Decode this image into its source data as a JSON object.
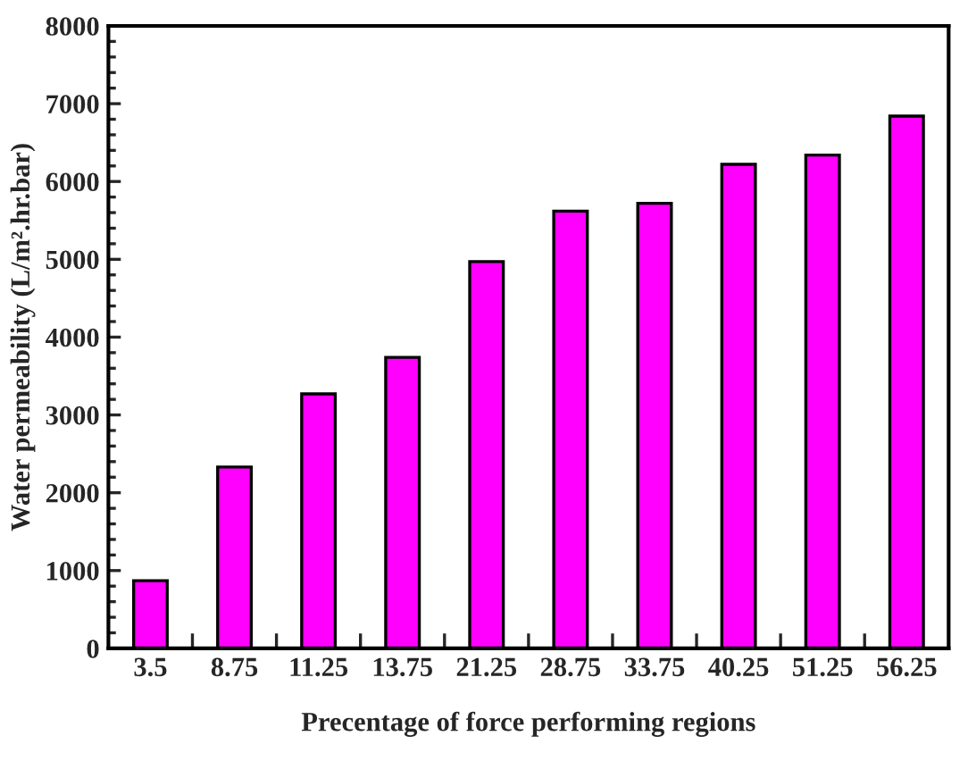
{
  "chart_data": {
    "type": "bar",
    "xlabel": "Precentage of force performing regions",
    "ylabel": "Water permeability (L/m².hr.bar)",
    "categories": [
      "3.5",
      "8.75",
      "11.25",
      "13.75",
      "21.25",
      "28.75",
      "33.75",
      "40.25",
      "51.25",
      "56.25"
    ],
    "values": [
      870,
      2330,
      3270,
      3740,
      4970,
      5620,
      5720,
      6220,
      6340,
      6840
    ],
    "color": "#ff00ff",
    "ylim": [
      0,
      8000
    ],
    "yticks": [
      0,
      1000,
      2000,
      3000,
      4000,
      5000,
      6000,
      7000,
      8000
    ],
    "grid": false,
    "legend": false
  }
}
